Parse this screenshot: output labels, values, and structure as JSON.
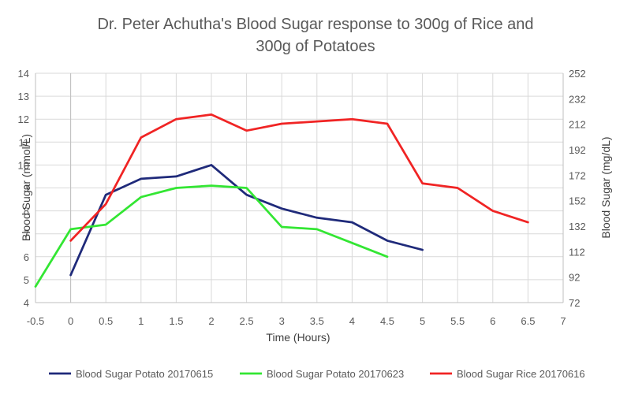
{
  "chart_data": {
    "type": "line",
    "title_lines": [
      "Dr. Peter Achutha's Blood Sugar response to 300g of Rice and",
      "300g of Potatoes"
    ],
    "xlabel": "Time (Hours)",
    "ylabel": "Blood Sugar (mmol/L)",
    "y2label": "Blood Sugar (mg/dL)",
    "xlim": [
      -0.5,
      7
    ],
    "ylim": [
      4,
      14
    ],
    "y2lim": [
      72,
      252
    ],
    "x_ticks": [
      "-0.5",
      "0",
      "0.5",
      "1",
      "1.5",
      "2",
      "2.5",
      "3",
      "3.5",
      "4",
      "4.5",
      "5",
      "5.5",
      "6",
      "6.5",
      "7"
    ],
    "y_ticks": [
      "4",
      "5",
      "6",
      "7",
      "8",
      "9",
      "10",
      "11",
      "12",
      "13",
      "14"
    ],
    "y2_ticks": [
      "72",
      "92",
      "112",
      "132",
      "152",
      "172",
      "192",
      "212",
      "232",
      "252"
    ],
    "grid": true,
    "legend_position": "bottom",
    "series": [
      {
        "name": "Blood Sugar Potato 20170615",
        "color": "#1f2a7a",
        "x": [
          0,
          0.5,
          1,
          1.5,
          2,
          2.5,
          3,
          3.5,
          4,
          4.5,
          5
        ],
        "y": [
          5.2,
          8.7,
          9.4,
          9.5,
          10.0,
          8.7,
          8.1,
          7.7,
          7.5,
          6.7,
          6.3
        ]
      },
      {
        "name": "Blood Sugar Potato 20170623",
        "color": "#33e633",
        "x": [
          -0.5,
          0,
          0.5,
          1,
          1.5,
          2,
          2.5,
          3,
          3.5,
          4,
          4.5
        ],
        "y": [
          4.7,
          7.2,
          7.4,
          8.6,
          9.0,
          9.1,
          9.0,
          7.3,
          7.2,
          6.6,
          6.0
        ]
      },
      {
        "name": "Blood Sugar Rice 20170616",
        "color": "#f02424",
        "x": [
          0,
          0.5,
          1,
          1.5,
          2,
          2.5,
          3,
          3.5,
          4,
          4.5,
          5,
          5.5,
          6,
          6.5
        ],
        "y": [
          6.7,
          8.3,
          11.2,
          12.0,
          12.2,
          11.5,
          11.8,
          11.9,
          12.0,
          11.8,
          9.2,
          9.0,
          8.0,
          7.5
        ]
      }
    ]
  }
}
